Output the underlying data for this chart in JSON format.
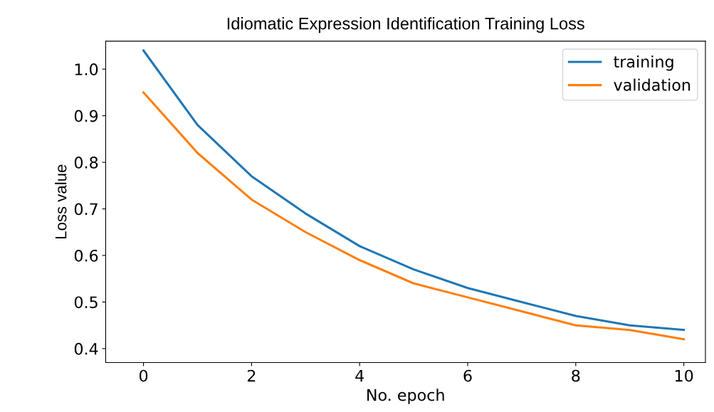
{
  "chart_data": {
    "type": "line",
    "title": "Idiomatic Expression Identification Training Loss",
    "xlabel": "No. epoch",
    "ylabel": "Loss value",
    "x": [
      0,
      1,
      2,
      3,
      4,
      5,
      6,
      7,
      8,
      9,
      10
    ],
    "series": [
      {
        "name": "training",
        "color": "#1f77b4",
        "values": [
          1.04,
          0.88,
          0.77,
          0.69,
          0.62,
          0.57,
          0.53,
          0.5,
          0.47,
          0.45,
          0.44
        ]
      },
      {
        "name": "validation",
        "color": "#ff7f0e",
        "values": [
          0.95,
          0.82,
          0.72,
          0.65,
          0.59,
          0.54,
          0.51,
          0.48,
          0.45,
          0.44,
          0.42
        ]
      }
    ],
    "xlim": [
      -0.7,
      10.4
    ],
    "ylim": [
      0.37,
      1.06
    ],
    "xticks": [
      0,
      2,
      4,
      6,
      8,
      10
    ],
    "yticks": [
      0.4,
      0.5,
      0.6,
      0.7,
      0.8,
      0.9,
      {
        "value": 1.0,
        "label": "1.0"
      }
    ],
    "grid": false,
    "legend": "top right"
  }
}
